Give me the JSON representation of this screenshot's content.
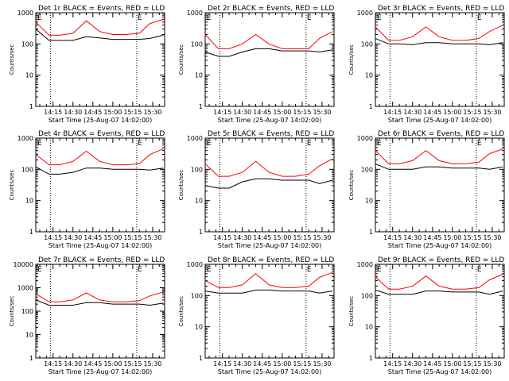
{
  "figure": {
    "x_tick_labels": [
      "14:15",
      "14:30",
      "14:45",
      "15:00",
      "15:15",
      "15:30"
    ],
    "y_tick_labels": [
      "1",
      "10",
      "100",
      "1000"
    ],
    "y_tick_labels_det7": [
      "1",
      "10",
      "100",
      "1000",
      "10000"
    ],
    "ylabel": "Counts/sec",
    "xlabel": "Start Time (25-Aug-07 14:02:00)",
    "marker_label": "E",
    "colors": {
      "events": "#000000",
      "lld": "#ff0000",
      "axes": "#000000"
    }
  },
  "chart_data": [
    {
      "type": "line",
      "title": "Det 1r BLACK = Events, RED = LLD",
      "ylim": [
        1,
        1000
      ],
      "yscale": "log",
      "x_unit": "minutes after 14:02:00",
      "xlim": [
        0,
        97
      ],
      "dotted_x": [
        11,
        76
      ],
      "x": [
        0,
        10,
        18,
        28,
        38,
        48,
        58,
        68,
        78,
        86,
        96
      ],
      "series": [
        {
          "name": "BLACK = Events",
          "values": [
            300,
            130,
            130,
            130,
            170,
            155,
            140,
            140,
            140,
            150,
            190
          ]
        },
        {
          "name": "RED = LLD",
          "values": [
            500,
            190,
            190,
            220,
            550,
            250,
            200,
            200,
            220,
            450,
            620
          ]
        }
      ]
    },
    {
      "type": "line",
      "title": "Det 2r BLACK = Events, RED = LLD",
      "ylim": [
        1,
        1000
      ],
      "yscale": "log",
      "x_unit": "minutes after 14:02:00",
      "xlim": [
        0,
        97
      ],
      "dotted_x": [
        11,
        76
      ],
      "x": [
        0,
        10,
        18,
        28,
        38,
        48,
        58,
        68,
        78,
        86,
        96
      ],
      "series": [
        {
          "name": "BLACK = Events",
          "values": [
            55,
            40,
            40,
            55,
            70,
            70,
            60,
            60,
            60,
            55,
            65
          ]
        },
        {
          "name": "RED = LLD",
          "values": [
            200,
            70,
            70,
            100,
            200,
            100,
            70,
            70,
            70,
            150,
            250
          ]
        }
      ]
    },
    {
      "type": "line",
      "title": "Det 3r BLACK = Events, RED = LLD",
      "ylim": [
        1,
        1000
      ],
      "yscale": "log",
      "x_unit": "minutes after 14:02:00",
      "xlim": [
        0,
        97
      ],
      "dotted_x": [
        11,
        76
      ],
      "x": [
        0,
        10,
        18,
        28,
        38,
        48,
        58,
        68,
        78,
        86,
        96
      ],
      "series": [
        {
          "name": "BLACK = Events",
          "values": [
            150,
            100,
            100,
            95,
            110,
            110,
            100,
            100,
            100,
            95,
            110
          ]
        },
        {
          "name": "RED = LLD",
          "values": [
            350,
            130,
            130,
            170,
            350,
            170,
            130,
            130,
            150,
            250,
            400
          ]
        }
      ]
    },
    {
      "type": "line",
      "title": "Det 4r BLACK = Events, RED = LLD",
      "ylim": [
        1,
        1000
      ],
      "yscale": "log",
      "x_unit": "minutes after 14:02:00",
      "xlim": [
        0,
        97
      ],
      "dotted_x": [
        11,
        76
      ],
      "x": [
        0,
        10,
        18,
        28,
        38,
        48,
        58,
        68,
        78,
        86,
        96
      ],
      "series": [
        {
          "name": "BLACK = Events",
          "values": [
            120,
            70,
            70,
            80,
            110,
            110,
            100,
            100,
            100,
            95,
            110
          ]
        },
        {
          "name": "RED = LLD",
          "values": [
            300,
            140,
            140,
            180,
            380,
            180,
            140,
            140,
            150,
            300,
            450
          ]
        }
      ]
    },
    {
      "type": "line",
      "title": "Det 5r BLACK = Events, RED = LLD",
      "ylim": [
        1,
        1000
      ],
      "yscale": "log",
      "x_unit": "minutes after 14:02:00",
      "xlim": [
        0,
        97
      ],
      "dotted_x": [
        11,
        76
      ],
      "x": [
        0,
        10,
        18,
        28,
        38,
        48,
        58,
        68,
        78,
        86,
        96
      ],
      "series": [
        {
          "name": "BLACK = Events",
          "values": [
            30,
            25,
            25,
            40,
            50,
            50,
            45,
            45,
            45,
            35,
            45
          ]
        },
        {
          "name": "RED = LLD",
          "values": [
            150,
            60,
            60,
            80,
            180,
            80,
            60,
            60,
            70,
            130,
            220
          ]
        }
      ]
    },
    {
      "type": "line",
      "title": "Det 6r BLACK = Events, RED = LLD",
      "ylim": [
        1,
        1000
      ],
      "yscale": "log",
      "x_unit": "minutes after 14:02:00",
      "xlim": [
        0,
        97
      ],
      "dotted_x": [
        11,
        76
      ],
      "x": [
        0,
        10,
        18,
        28,
        38,
        48,
        58,
        68,
        78,
        86,
        96
      ],
      "series": [
        {
          "name": "BLACK = Events",
          "values": [
            150,
            100,
            100,
            100,
            120,
            120,
            110,
            110,
            110,
            100,
            120
          ]
        },
        {
          "name": "RED = LLD",
          "values": [
            400,
            150,
            150,
            190,
            400,
            190,
            150,
            150,
            170,
            320,
            450
          ]
        }
      ]
    },
    {
      "type": "line",
      "title": "Det 7r BLACK = Events, RED = LLD",
      "ylim": [
        1,
        10000
      ],
      "yscale": "log",
      "x_unit": "minutes after 14:02:00",
      "xlim": [
        0,
        97
      ],
      "dotted_x": [
        11,
        76
      ],
      "x": [
        0,
        10,
        18,
        28,
        38,
        48,
        58,
        68,
        78,
        86,
        96
      ],
      "series": [
        {
          "name": "BLACK = Events",
          "values": [
            300,
            180,
            180,
            180,
            230,
            230,
            200,
            200,
            200,
            180,
            220
          ]
        },
        {
          "name": "RED = LLD",
          "values": [
            550,
            250,
            250,
            300,
            600,
            300,
            250,
            250,
            280,
            450,
            650
          ]
        }
      ]
    },
    {
      "type": "line",
      "title": "Det 8r BLACK = Events, RED = LLD",
      "ylim": [
        1,
        1000
      ],
      "yscale": "log",
      "x_unit": "minutes after 14:02:00",
      "xlim": [
        0,
        97
      ],
      "dotted_x": [
        11,
        76
      ],
      "x": [
        0,
        10,
        18,
        28,
        38,
        48,
        58,
        68,
        78,
        86,
        96
      ],
      "series": [
        {
          "name": "BLACK = Events",
          "values": [
            140,
            120,
            120,
            120,
            150,
            150,
            140,
            140,
            140,
            120,
            140
          ]
        },
        {
          "name": "RED = LLD",
          "values": [
            300,
            180,
            180,
            220,
            500,
            220,
            180,
            180,
            200,
            380,
            550
          ]
        }
      ]
    },
    {
      "type": "line",
      "title": "Det 9r BLACK = Events, RED = LLD",
      "ylim": [
        1,
        1000
      ],
      "yscale": "log",
      "x_unit": "minutes after 14:02:00",
      "xlim": [
        0,
        97
      ],
      "dotted_x": [
        11,
        76
      ],
      "x": [
        0,
        10,
        18,
        28,
        38,
        48,
        58,
        68,
        78,
        86,
        96
      ],
      "series": [
        {
          "name": "BLACK = Events",
          "values": [
            150,
            110,
            110,
            110,
            140,
            140,
            130,
            130,
            130,
            110,
            140
          ]
        },
        {
          "name": "RED = LLD",
          "values": [
            400,
            160,
            160,
            200,
            420,
            200,
            160,
            160,
            180,
            320,
            480
          ]
        }
      ]
    }
  ]
}
